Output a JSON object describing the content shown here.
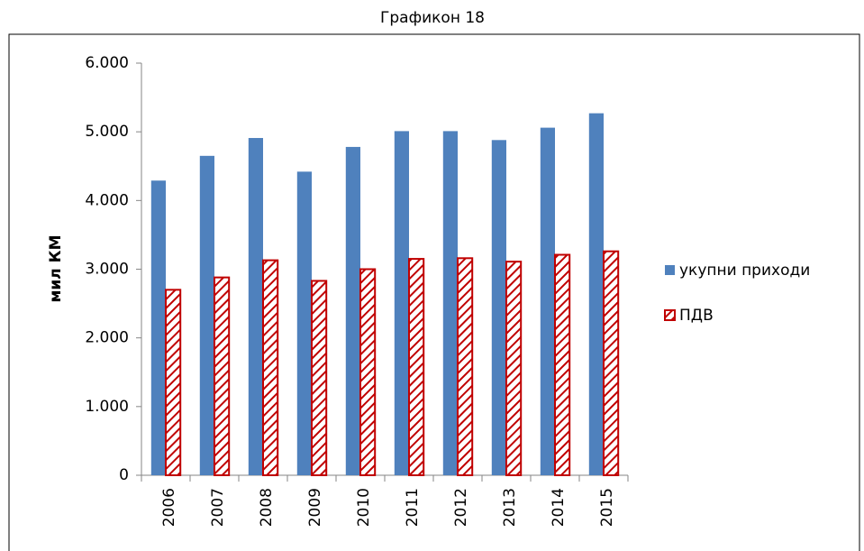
{
  "chart_data": {
    "type": "bar",
    "title": "Графикон 18",
    "ylabel": "мил КМ",
    "categories": [
      "2006",
      "2007",
      "2008",
      "2009",
      "2010",
      "2011",
      "2012",
      "2013",
      "2014",
      "2015"
    ],
    "series": [
      {
        "name": "укупни приходи",
        "color": "#4f81bd",
        "values": [
          4290,
          4650,
          4910,
          4420,
          4780,
          5010,
          5010,
          4880,
          5060,
          5270
        ]
      },
      {
        "name": "ПДВ",
        "color": "#c00000",
        "values": [
          2700,
          2880,
          3130,
          2830,
          3000,
          3150,
          3160,
          3110,
          3210,
          3260
        ]
      }
    ],
    "ylim": [
      0,
      6000
    ],
    "yticks": [
      0,
      {
        "value": 1000,
        "label": "1.000"
      },
      {
        "value": 2000,
        "label": "2.000"
      },
      {
        "value": 3000,
        "label": "3.000"
      },
      {
        "value": 4000,
        "label": "4.000"
      },
      {
        "value": 5000,
        "label": "5.000"
      },
      {
        "value": 6000,
        "label": "6.000"
      }
    ],
    "grid": false,
    "legend": "right"
  }
}
